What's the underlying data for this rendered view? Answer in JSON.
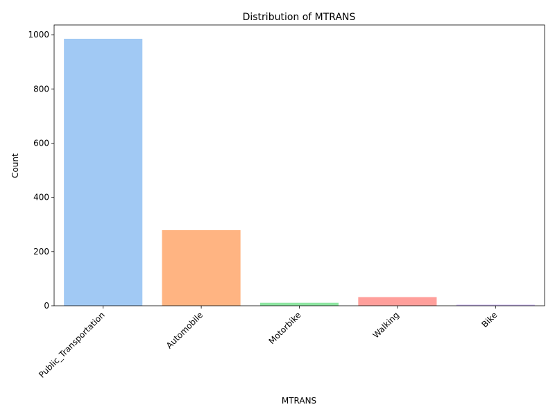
{
  "chart_data": {
    "type": "bar",
    "title": "Distribution of MTRANS",
    "xlabel": "MTRANS",
    "ylabel": "Count",
    "categories": [
      "Public_Transportation",
      "Automobile",
      "Motorbike",
      "Walking",
      "Bike"
    ],
    "values": [
      985,
      279,
      11,
      32,
      4
    ],
    "colors": [
      "#a1c9f4",
      "#ffb482",
      "#8de5a1",
      "#ff9f9b",
      "#d0bbff"
    ],
    "ylim": [
      0,
      1036
    ],
    "yticks": [
      0,
      200,
      400,
      600,
      800,
      1000
    ],
    "grid": false,
    "legend": "none"
  }
}
